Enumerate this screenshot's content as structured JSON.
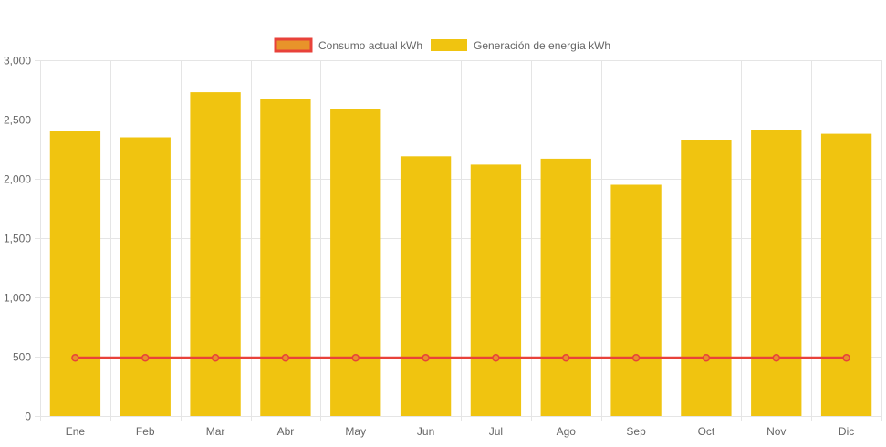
{
  "chart_data": {
    "type": "bar",
    "categories": [
      "Ene",
      "Feb",
      "Mar",
      "Abr",
      "May",
      "Jun",
      "Jul",
      "Ago",
      "Sep",
      "Oct",
      "Nov",
      "Dic"
    ],
    "series": [
      {
        "name": "Consumo actual kWh",
        "kind": "line",
        "color": "#e8423a",
        "fill": "#e8932a",
        "values": [
          490,
          490,
          490,
          490,
          490,
          490,
          490,
          490,
          490,
          490,
          490,
          490
        ]
      },
      {
        "name": "Generación de energía kWh",
        "kind": "bar",
        "color": "#f0c410",
        "values": [
          2400,
          2350,
          2730,
          2670,
          2590,
          2190,
          2120,
          2170,
          1950,
          2330,
          2410,
          2380
        ]
      }
    ],
    "ylim": [
      0,
      3000
    ],
    "yticks": [
      0,
      500,
      1000,
      1500,
      2000,
      2500,
      3000
    ],
    "ytick_labels": [
      "0",
      "500",
      "1,000",
      "1,500",
      "2,000",
      "2,500",
      "3,000"
    ],
    "grid": true,
    "legend_position": "top-center",
    "title": "",
    "xlabel": "",
    "ylabel": ""
  }
}
